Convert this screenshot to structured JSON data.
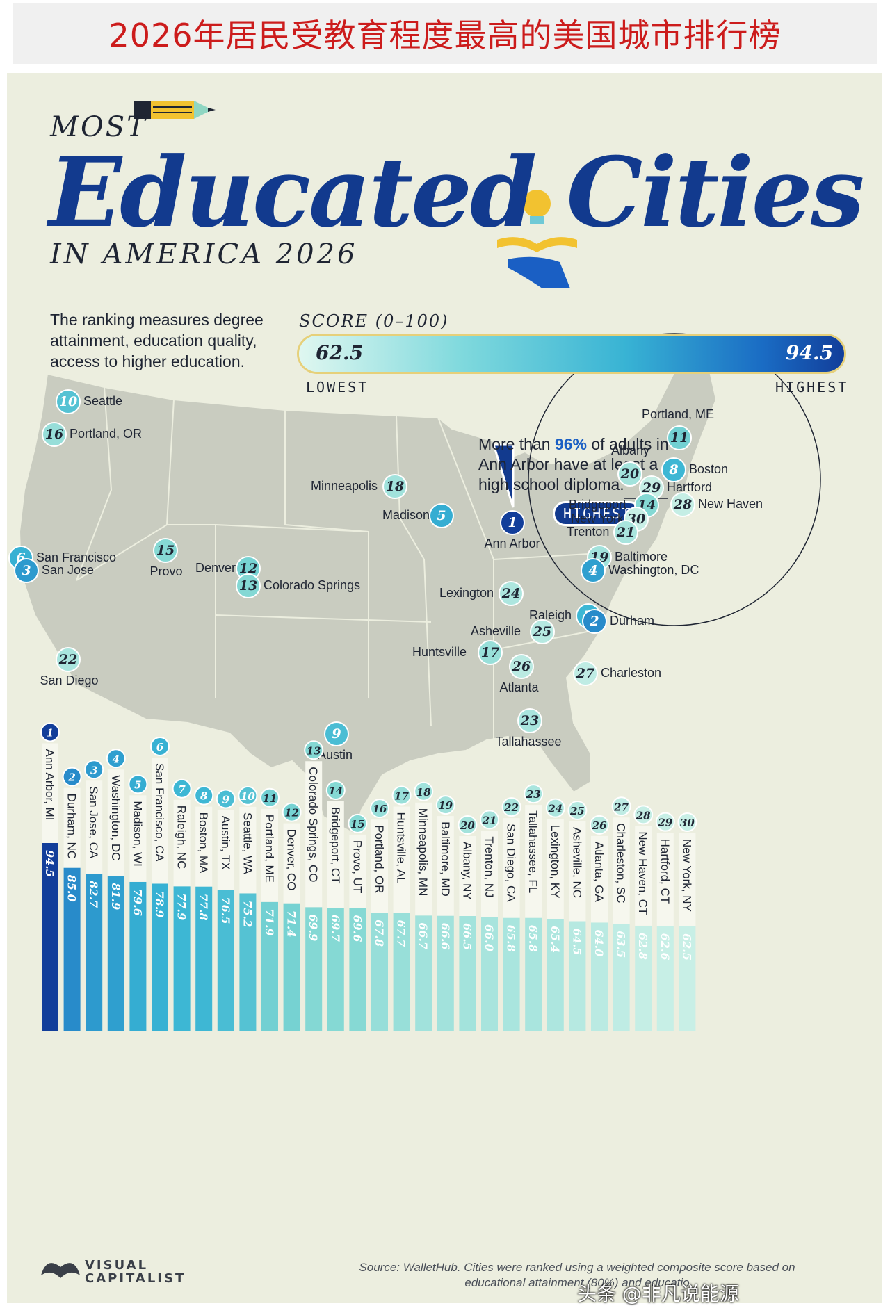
{
  "banner": {
    "title": "2026年居民受教育程度最高的美国城市排行榜"
  },
  "header": {
    "most": "MOST",
    "main": "Educated Cities",
    "sub": "IN AMERICA 2026"
  },
  "description": "The ranking measures degree attainment, education quality, access to higher education.",
  "score": {
    "label": "SCORE (0–100)",
    "low_value": "62.5",
    "high_value": "94.5",
    "low_label": "LOWEST",
    "high_label": "HIGHEST"
  },
  "callout": {
    "pre": "More than ",
    "highlight": "96%",
    "post": " of adults in Ann Arbor have at least a high school diploma."
  },
  "highest_tag": "HIGHEST",
  "footer": {
    "logo_line1": "VISUAL",
    "logo_line2": "CAPITALIST",
    "source": "Source: WalletHub. Cities were ranked using a weighted composite score based on educational attainment (80%) and educatio"
  },
  "watermark": "头条 @非凡说能源",
  "colors": {
    "darkest": "#123e9a",
    "mid": "#2fa6d0",
    "light": "#c8efe6",
    "banner_text": "#cc1c1c"
  },
  "map_labels": [
    {
      "rank": "10",
      "name": "Seattle"
    },
    {
      "rank": "16",
      "name": "Portland, OR"
    },
    {
      "rank": "18",
      "name": "Minneapolis"
    },
    {
      "rank": "5",
      "name": "Madison"
    },
    {
      "rank": "1",
      "name": "Ann Arbor"
    },
    {
      "rank": "6",
      "name": "San Francisco"
    },
    {
      "rank": "3",
      "name": "San Jose"
    },
    {
      "rank": "15",
      "name": "Provo"
    },
    {
      "rank": "12",
      "name": "Denver"
    },
    {
      "rank": "13",
      "name": "Colorado Springs"
    },
    {
      "rank": "22",
      "name": "San Diego"
    },
    {
      "rank": "9",
      "name": "Austin"
    },
    {
      "rank": "24",
      "name": "Lexington"
    },
    {
      "rank": "7",
      "name": "Raleigh"
    },
    {
      "rank": "2",
      "name": "Durham"
    },
    {
      "rank": "25",
      "name": "Asheville"
    },
    {
      "rank": "17",
      "name": "Huntsville"
    },
    {
      "rank": "26",
      "name": "Atlanta"
    },
    {
      "rank": "27",
      "name": "Charleston"
    },
    {
      "rank": "23",
      "name": "Tallahassee"
    },
    {
      "rank": "11",
      "name": "Portland, ME"
    },
    {
      "rank": "20",
      "name": "Albany"
    },
    {
      "rank": "8",
      "name": "Boston"
    },
    {
      "rank": "29",
      "name": "Hartford"
    },
    {
      "rank": "14",
      "name": "Bridgeport"
    },
    {
      "rank": "28",
      "name": "New Haven"
    },
    {
      "rank": "30",
      "name": "New York"
    },
    {
      "rank": "21",
      "name": "Trenton"
    },
    {
      "rank": "19",
      "name": "Baltimore"
    },
    {
      "rank": "4",
      "name": "Washington, DC"
    }
  ],
  "chart_data": {
    "type": "bar",
    "title": "Educated Cities",
    "ylim": [
      62.5,
      94.5
    ],
    "ranks": [
      "1",
      "2",
      "3",
      "4",
      "5",
      "6",
      "7",
      "8",
      "9",
      "10",
      "11",
      "12",
      "13",
      "14",
      "15",
      "16",
      "17",
      "18",
      "19",
      "20",
      "21",
      "22",
      "23",
      "24",
      "25",
      "26",
      "27",
      "28",
      "29",
      "30"
    ],
    "categories": [
      "Ann Arbor, MI",
      "Durham, NC",
      "San Jose, CA",
      "Washington, DC",
      "Madison, WI",
      "San Francisco, CA",
      "Raleigh, NC",
      "Boston, MA",
      "Austin, TX",
      "Seattle, WA",
      "Portland, ME",
      "Denver, CO",
      "Colorado Springs, CO",
      "Bridgeport, CT",
      "Provo, UT",
      "Portland, OR",
      "Huntsville, AL",
      "Minneapolis, MN",
      "Baltimore, MD",
      "Albany, NY",
      "Trenton, NJ",
      "San Diego, CA",
      "Tallahassee, FL",
      "Lexington, KY",
      "Asheville, NC",
      "Atlanta, GA",
      "Charleston, SC",
      "New Haven, CT",
      "Hartford, CT",
      "New York, NY"
    ],
    "values": [
      94.5,
      85.0,
      82.7,
      81.9,
      79.6,
      78.9,
      77.9,
      77.8,
      76.5,
      75.2,
      71.9,
      71.4,
      69.9,
      69.7,
      69.6,
      67.8,
      67.7,
      66.7,
      66.6,
      66.5,
      66.0,
      65.8,
      65.8,
      65.4,
      64.5,
      64.0,
      63.5,
      62.8,
      62.6,
      62.5
    ],
    "value_labels": [
      "94.5",
      "85.0",
      "82.7",
      "81.9",
      "79.6",
      "78.9",
      "77.9",
      "77.8",
      "76.5",
      "75.2",
      "71.9",
      "71.4",
      "69.9",
      "69.7",
      "69.6",
      "67.8",
      "67.7",
      "66.7",
      "66.6",
      "66.5",
      "66.0",
      "65.8",
      "65.8",
      "65.4",
      "64.5",
      "64.0",
      "63.5",
      "62.8",
      "62.6",
      "62.5"
    ]
  }
}
